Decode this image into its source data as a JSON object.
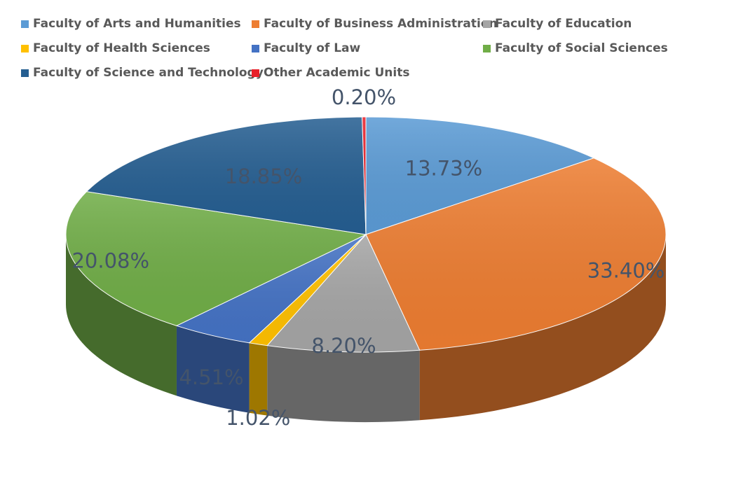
{
  "chart_data": {
    "type": "pie",
    "title": "",
    "style": "3d-exploded-tilt",
    "legend_position": "top",
    "slices": [
      {
        "name": "Faculty of Arts and Humanities",
        "value": 13.73,
        "label": "13.73%",
        "color": "#5b9bd5"
      },
      {
        "name": "Faculty of Business Administration",
        "value": 33.4,
        "label": "33.40%",
        "color": "#ed7d31"
      },
      {
        "name": "Faculty of Education",
        "value": 8.2,
        "label": "8.20%",
        "color": "#a5a5a5"
      },
      {
        "name": "Faculty of Health Sciences",
        "value": 1.02,
        "label": "1.02%",
        "color": "#ffc000"
      },
      {
        "name": "Faculty of Law",
        "value": 4.51,
        "label": "4.51%",
        "color": "#4472c4"
      },
      {
        "name": "Faculty of Social Sciences",
        "value": 20.08,
        "label": "20.08%",
        "color": "#70ad47"
      },
      {
        "name": "Faculty of Science and Technology",
        "value": 18.85,
        "label": "18.85%",
        "color": "#255e91"
      },
      {
        "name": "Other Academic Units",
        "value": 0.2,
        "label": "0.20%",
        "color": "#e8202a"
      }
    ]
  }
}
